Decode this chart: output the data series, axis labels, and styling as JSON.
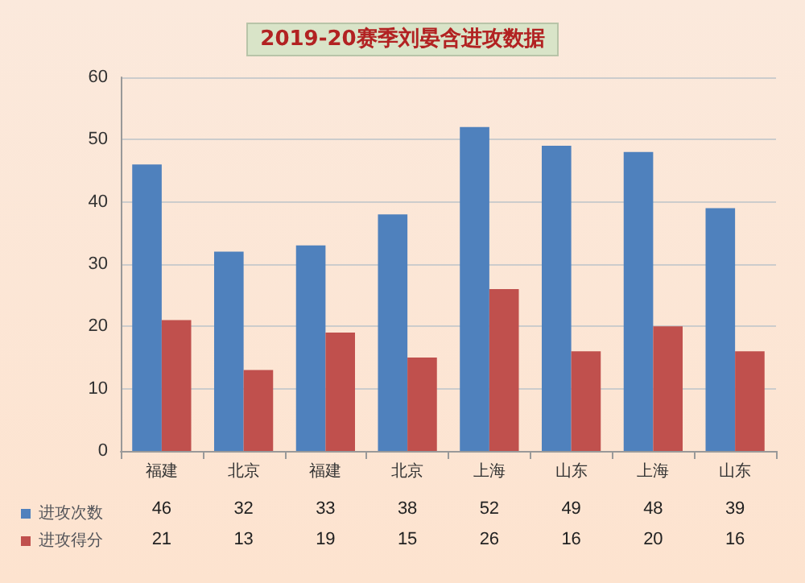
{
  "chart_data": {
    "type": "bar",
    "title": "2019-20赛季刘晏含进攻数据",
    "categories": [
      "福建",
      "北京",
      "福建",
      "北京",
      "上海",
      "山东",
      "上海",
      "山东"
    ],
    "series": [
      {
        "name": "进攻次数",
        "color": "#4f81bd",
        "values": [
          46,
          32,
          33,
          38,
          52,
          49,
          48,
          39
        ]
      },
      {
        "name": "进攻得分",
        "color": "#c0504d",
        "values": [
          21,
          13,
          19,
          15,
          26,
          16,
          20,
          16
        ]
      }
    ],
    "ylim": [
      0,
      60
    ],
    "yticks": [
      0,
      10,
      20,
      30,
      40,
      50,
      60
    ],
    "grid": "y",
    "legend": "bottom left",
    "data_labels": true
  }
}
